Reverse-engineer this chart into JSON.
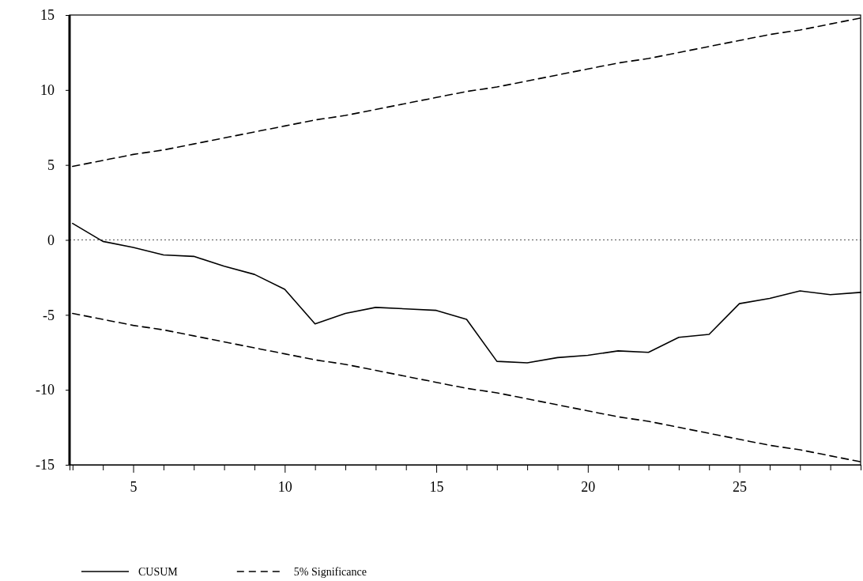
{
  "chart_data": {
    "type": "line",
    "x": [
      3,
      4,
      5,
      6,
      7,
      8,
      9,
      10,
      11,
      12,
      13,
      14,
      15,
      16,
      17,
      18,
      19,
      20,
      21,
      22,
      23,
      24,
      25,
      26,
      27,
      28,
      29
    ],
    "series": [
      {
        "name": "CUSUM",
        "color": "#000000",
        "line_style": "solid",
        "values": [
          1.1,
          -0.1,
          -0.5,
          -1.0,
          -1.1,
          -1.75,
          -2.3,
          -3.3,
          -5.6,
          -4.9,
          -4.5,
          -4.6,
          -4.7,
          -5.3,
          -8.1,
          -8.2,
          -7.85,
          -7.7,
          -7.4,
          -7.5,
          -6.5,
          -6.3,
          -4.25,
          -3.9,
          -3.4,
          -3.65,
          -3.5
        ]
      },
      {
        "name": "5% Significance",
        "color": "#000000",
        "line_style": "dashed",
        "values": [
          4.9,
          5.3,
          5.7,
          6.0,
          6.4,
          6.8,
          7.2,
          7.6,
          8.0,
          8.3,
          8.7,
          9.1,
          9.5,
          9.9,
          10.2,
          10.6,
          11.0,
          11.4,
          11.8,
          12.1,
          12.5,
          12.9,
          13.3,
          13.7,
          14.0,
          14.4,
          14.8
        ]
      },
      {
        "color": "#000000",
        "line_style": "dashed",
        "values": [
          -4.9,
          -5.3,
          -5.7,
          -6.0,
          -6.4,
          -6.8,
          -7.2,
          -7.6,
          -8.0,
          -8.3,
          -8.7,
          -9.1,
          -9.5,
          -9.9,
          -10.2,
          -10.6,
          -11.0,
          -11.4,
          -11.8,
          -12.1,
          -12.5,
          -12.9,
          -13.3,
          -13.7,
          -14.0,
          -14.4,
          -14.8
        ]
      }
    ],
    "xlim": [
      2.9,
      29
    ],
    "ylim": [
      -15,
      15
    ],
    "xticks": [
      {
        "value": 3,
        "label": null
      },
      {
        "value": 4,
        "label": null
      },
      5,
      {
        "value": 6,
        "label": null
      },
      {
        "value": 7,
        "label": null
      },
      {
        "value": 8,
        "label": null
      },
      {
        "value": 9,
        "label": null
      },
      10,
      {
        "value": 11,
        "label": null
      },
      {
        "value": 12,
        "label": null
      },
      {
        "value": 13,
        "label": null
      },
      {
        "value": 14,
        "label": null
      },
      15,
      {
        "value": 16,
        "label": null
      },
      {
        "value": 17,
        "label": null
      },
      {
        "value": 18,
        "label": null
      },
      {
        "value": 19,
        "label": null
      },
      20,
      {
        "value": 21,
        "label": null
      },
      {
        "value": 22,
        "label": null
      },
      {
        "value": 23,
        "label": null
      },
      {
        "value": 24,
        "label": null
      },
      25,
      {
        "value": 26,
        "label": null
      },
      {
        "value": 27,
        "label": null
      },
      {
        "value": 28,
        "label": null
      },
      {
        "value": 29,
        "label": null
      }
    ],
    "yticks": [
      -15,
      -10,
      -5,
      0,
      5,
      10,
      15
    ],
    "ref_lines": [
      {
        "axis": "y",
        "value": 0,
        "line_style": "dotted",
        "color": "#555555"
      }
    ],
    "legend": "bottom left"
  }
}
